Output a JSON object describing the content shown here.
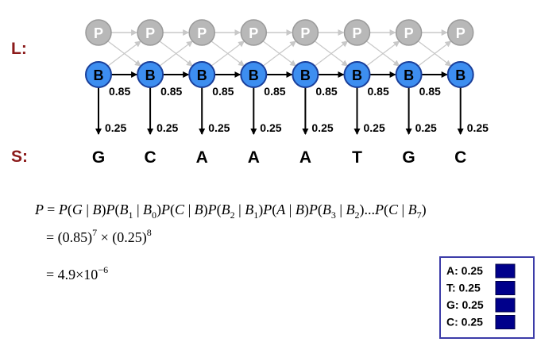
{
  "row_labels": {
    "hidden": "L:",
    "observed": "S:"
  },
  "hidden_state_labels": {
    "faded": "P",
    "active": "B"
  },
  "transition_label": "0.85",
  "emission_label": "0.25",
  "sequence": [
    "G",
    "C",
    "A",
    "A",
    "A",
    "T",
    "G",
    "C"
  ],
  "equation": {
    "line1": {
      "lhs": "P",
      "rhs_parts": [
        {
          "t": "= "
        },
        {
          "t": "P",
          "i": true
        },
        {
          "t": "("
        },
        {
          "t": "G",
          "i": true
        },
        {
          "t": " | "
        },
        {
          "t": "B",
          "i": true
        },
        {
          "t": ")"
        },
        {
          "t": "P",
          "i": true
        },
        {
          "t": "("
        },
        {
          "t": "B",
          "i": true
        },
        {
          "sub": "1"
        },
        {
          "t": " | "
        },
        {
          "t": "B",
          "i": true
        },
        {
          "sub": "0"
        },
        {
          "t": ")"
        },
        {
          "t": "P",
          "i": true
        },
        {
          "t": "("
        },
        {
          "t": "C",
          "i": true
        },
        {
          "t": " | "
        },
        {
          "t": "B",
          "i": true
        },
        {
          "t": ")"
        },
        {
          "t": "P",
          "i": true
        },
        {
          "t": "("
        },
        {
          "t": "B",
          "i": true
        },
        {
          "sub": "2"
        },
        {
          "t": " | "
        },
        {
          "t": "B",
          "i": true
        },
        {
          "sub": "1"
        },
        {
          "t": ")"
        },
        {
          "t": "P",
          "i": true
        },
        {
          "t": "("
        },
        {
          "t": "A",
          "i": true
        },
        {
          "t": " | "
        },
        {
          "t": "B",
          "i": true
        },
        {
          "t": ")"
        },
        {
          "t": "P",
          "i": true
        },
        {
          "t": "("
        },
        {
          "t": "B",
          "i": true
        },
        {
          "sub": "3"
        },
        {
          "t": " | "
        },
        {
          "t": "B",
          "i": true
        },
        {
          "sub": "2"
        },
        {
          "t": ")"
        },
        {
          "t": "..."
        },
        {
          "t": "P",
          "i": true
        },
        {
          "t": "("
        },
        {
          "t": "C",
          "i": true
        },
        {
          "t": " | "
        },
        {
          "t": "B",
          "i": true
        },
        {
          "sub": "7"
        },
        {
          "t": ")"
        }
      ]
    },
    "line2": {
      "prefix": "= (0.85)",
      "exp1": "7",
      "mid": " × (0.25)",
      "exp2": "8"
    },
    "line3": {
      "prefix": "= 4.9×10",
      "exp": "−6"
    }
  },
  "legend": [
    {
      "label": "A: 0.25"
    },
    {
      "label": "T: 0.25"
    },
    {
      "label": "G: 0.25"
    },
    {
      "label": "C: 0.25"
    }
  ],
  "colors": {
    "active_fill": "#3d8ef0",
    "active_stroke": "#1a3f9a",
    "faded_fill": "#b8b8b8",
    "faded_stroke": "#9a9a9a",
    "faded_text": "#ffffff",
    "label_red": "#8b1a1a",
    "legend_border": "#3c3ca8",
    "legend_swatch": "#00008b"
  }
}
